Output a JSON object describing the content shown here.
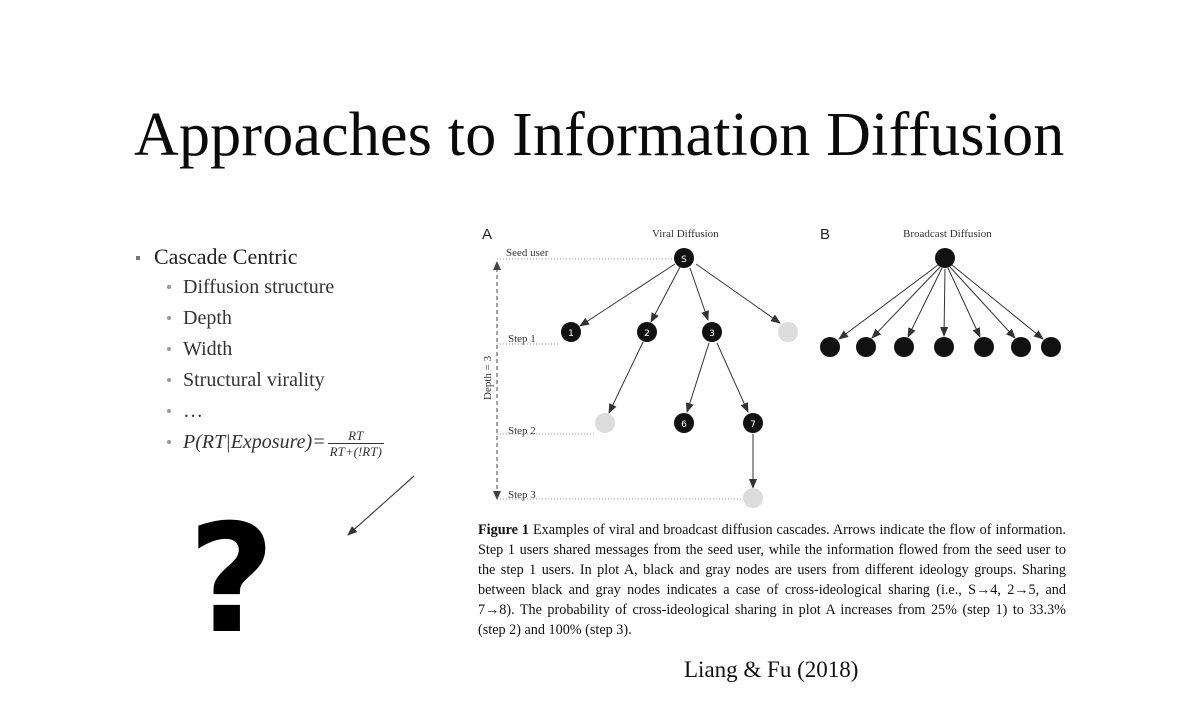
{
  "slide": {
    "title": "Approaches to Information Diffusion",
    "bullets": {
      "main": "Cascade Centric",
      "sub": [
        "Diffusion structure",
        "Depth",
        "Width",
        "Structural virality",
        "…"
      ],
      "formula": {
        "lhs": "P(RT|Exposure)",
        "eq": "=",
        "num": "RT",
        "den": "RT+(!RT)"
      }
    },
    "question_mark": "?",
    "citation": "Liang & Fu (2018)"
  },
  "figure": {
    "panel_a": {
      "letter": "A",
      "title": "Viral Diffusion",
      "seed_label": "Seed user",
      "depth_label": "Depth = 3",
      "steps": [
        "Step 1",
        "Step 2",
        "Step 3"
      ],
      "node_labels": {
        "seed": "S",
        "n1": "1",
        "n2": "2",
        "n3": "3",
        "n6": "6",
        "n7": "7"
      }
    },
    "panel_b": {
      "letter": "B",
      "title": "Broadcast Diffusion"
    },
    "caption_label": "Figure 1",
    "caption_text": "Examples of viral and broadcast diffusion cascades. Arrows indicate the flow of information. Step 1 users shared messages from the seed user, while the information flowed from the seed user to the step 1 users. In plot A, black and gray nodes are users from different ideology groups. Sharing between black and gray nodes indicates a case of cross-ideological sharing (i.e., S→4, 2→5, and 7→8). The probability of cross-ideological sharing in plot A increases from 25% (step 1) to 33.3% (step 2) and 100% (step 3).",
    "colors": {
      "black_node": "#111111",
      "gray_node": "#d8d8d8",
      "line": "#333333"
    }
  }
}
